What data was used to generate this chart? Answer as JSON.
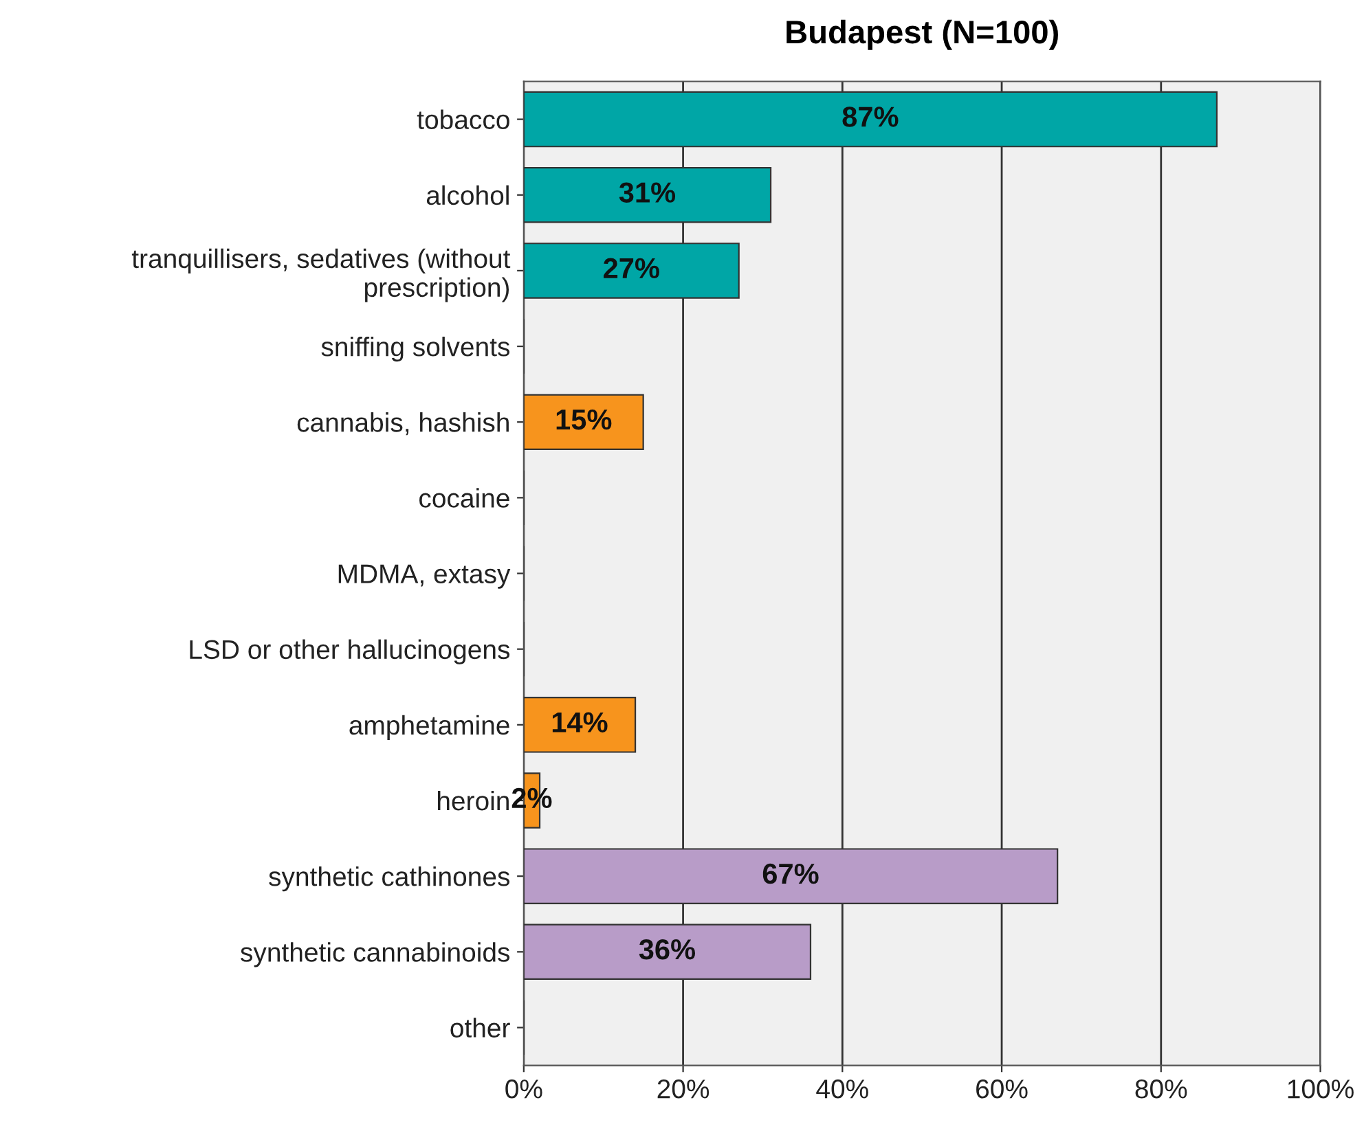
{
  "chart_data": {
    "type": "bar",
    "orientation": "horizontal",
    "title": "Budapest (N=100)",
    "categories": [
      "tobacco",
      "alcohol",
      "tranquillisers, sedatives (without\nprescription)",
      "sniffing solvents",
      "cannabis, hashish",
      "cocaine",
      "MDMA, extasy",
      "LSD or other hallucinogens",
      "amphetamine",
      "heroin",
      "synthetic cathinones",
      "synthetic cannabinoids",
      "other"
    ],
    "values": [
      87,
      31,
      27,
      0,
      15,
      0,
      0,
      0,
      14,
      2,
      67,
      36,
      0
    ],
    "colors": [
      "#00a6a6",
      "#00a6a6",
      "#00a6a6",
      "#333333",
      "#f7941d",
      "#333333",
      "#333333",
      "#333333",
      "#f7941d",
      "#f7941d",
      "#b89cc8",
      "#b89cc8",
      "#333333"
    ],
    "value_labels": [
      "87%",
      "31%",
      "27%",
      null,
      "15%",
      null,
      null,
      null,
      "14%",
      "2%",
      "67%",
      "36%",
      null
    ],
    "xlim": [
      0,
      100
    ],
    "xticks": [
      {
        "value": 0,
        "label": "0%"
      },
      {
        "value": 20,
        "label": "20%"
      },
      {
        "value": 40,
        "label": "40%"
      },
      {
        "value": 60,
        "label": "60%"
      },
      {
        "value": 80,
        "label": "80%"
      },
      {
        "value": 100,
        "label": "100%"
      }
    ],
    "grid": "x"
  }
}
